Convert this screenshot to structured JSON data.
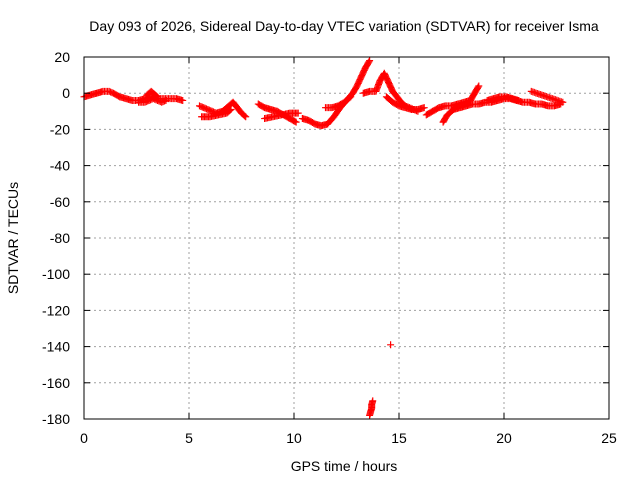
{
  "chart_data": {
    "type": "scatter",
    "title": "Day 093 of 2026, Sidereal Day-to-day VTEC variation (SDTVAR) for receiver Isma",
    "xlabel": "GPS time / hours",
    "ylabel": "SDTVAR / TECUs",
    "xlim": [
      0,
      25
    ],
    "ylim": [
      -180,
      20
    ],
    "xticks": [
      0,
      5,
      10,
      15,
      20,
      25
    ],
    "yticks": [
      20,
      0,
      -20,
      -40,
      -60,
      -80,
      -100,
      -120,
      -140,
      -160,
      -180
    ],
    "grid": true,
    "marker": "+",
    "color": "#ff0000",
    "series": [
      {
        "name": "SDTVAR",
        "segments": [
          [
            [
              0.0,
              -2
            ],
            [
              0.3,
              -1
            ],
            [
              0.6,
              0
            ],
            [
              0.9,
              1
            ],
            [
              1.2,
              1
            ],
            [
              1.4,
              0
            ],
            [
              1.7,
              -2
            ],
            [
              2.0,
              -3
            ],
            [
              2.3,
              -4
            ],
            [
              2.6,
              -4
            ],
            [
              2.9,
              -3
            ],
            [
              3.2,
              -2
            ],
            [
              3.5,
              -3
            ],
            [
              3.8,
              -3
            ],
            [
              4.1,
              -3
            ],
            [
              4.4,
              -3
            ],
            [
              4.7,
              -4
            ]
          ],
          [
            [
              2.6,
              -5
            ],
            [
              2.9,
              -5
            ],
            [
              3.1,
              -4
            ],
            [
              3.3,
              -3
            ],
            [
              3.5,
              -4
            ],
            [
              3.7,
              -5
            ],
            [
              3.9,
              -4
            ]
          ],
          [
            [
              3.0,
              -1
            ],
            [
              3.1,
              0
            ],
            [
              3.2,
              1
            ],
            [
              3.3,
              0
            ],
            [
              3.4,
              -1
            ],
            [
              3.5,
              -2
            ]
          ],
          [
            [
              5.5,
              -7
            ],
            [
              5.9,
              -9
            ],
            [
              6.3,
              -11
            ],
            [
              6.6,
              -10
            ],
            [
              6.9,
              -7
            ],
            [
              7.1,
              -5
            ],
            [
              7.3,
              -8
            ],
            [
              7.5,
              -11
            ],
            [
              7.7,
              -13
            ]
          ],
          [
            [
              5.6,
              -13
            ],
            [
              6.0,
              -13
            ],
            [
              6.4,
              -12
            ],
            [
              6.8,
              -11
            ],
            [
              7.0,
              -9
            ]
          ],
          [
            [
              8.3,
              -6
            ],
            [
              8.6,
              -8
            ],
            [
              8.9,
              -9
            ],
            [
              9.2,
              -10
            ],
            [
              9.5,
              -12
            ],
            [
              9.8,
              -14
            ],
            [
              10.1,
              -16
            ]
          ],
          [
            [
              8.6,
              -14
            ],
            [
              9.0,
              -13
            ],
            [
              9.4,
              -12
            ],
            [
              9.8,
              -11
            ],
            [
              10.2,
              -11
            ]
          ],
          [
            [
              10.4,
              -14
            ],
            [
              10.7,
              -15
            ],
            [
              11.0,
              -17
            ],
            [
              11.3,
              -18
            ],
            [
              11.6,
              -17
            ],
            [
              11.9,
              -13
            ],
            [
              12.2,
              -8
            ],
            [
              12.5,
              -4
            ],
            [
              12.8,
              0
            ],
            [
              13.0,
              4
            ],
            [
              13.2,
              9
            ],
            [
              13.4,
              14
            ],
            [
              13.6,
              18
            ]
          ],
          [
            [
              11.5,
              -8
            ],
            [
              11.8,
              -8
            ],
            [
              12.1,
              -7
            ],
            [
              12.4,
              -5
            ],
            [
              12.7,
              -2
            ]
          ],
          [
            [
              13.3,
              0
            ],
            [
              13.6,
              1
            ],
            [
              13.9,
              1
            ],
            [
              14.1,
              7
            ],
            [
              14.3,
              11
            ],
            [
              14.5,
              6
            ],
            [
              14.7,
              1
            ],
            [
              14.9,
              -2
            ],
            [
              15.1,
              -5
            ],
            [
              15.3,
              -7
            ],
            [
              15.5,
              -8
            ],
            [
              15.7,
              -9
            ],
            [
              15.9,
              -10
            ]
          ],
          [
            [
              14.4,
              -2
            ],
            [
              14.7,
              -5
            ],
            [
              15.0,
              -7
            ],
            [
              15.3,
              -8
            ],
            [
              15.6,
              -9
            ],
            [
              15.9,
              -9
            ],
            [
              16.2,
              -8
            ]
          ],
          [
            [
              16.3,
              -12
            ],
            [
              16.6,
              -10
            ],
            [
              16.9,
              -8
            ],
            [
              17.2,
              -7
            ],
            [
              17.5,
              -7
            ],
            [
              17.8,
              -6
            ],
            [
              18.1,
              -5
            ],
            [
              18.4,
              -4
            ],
            [
              18.6,
              0
            ],
            [
              18.8,
              4
            ]
          ],
          [
            [
              17.1,
              -16
            ],
            [
              17.3,
              -12
            ],
            [
              17.6,
              -9
            ],
            [
              17.9,
              -8
            ],
            [
              18.2,
              -7
            ],
            [
              18.5,
              -6
            ],
            [
              18.8,
              -6
            ],
            [
              19.1,
              -5
            ],
            [
              19.4,
              -5
            ],
            [
              19.7,
              -4
            ],
            [
              20.0,
              -3
            ],
            [
              20.3,
              -3
            ],
            [
              20.6,
              -4
            ],
            [
              20.9,
              -5
            ],
            [
              21.2,
              -5
            ],
            [
              21.5,
              -6
            ],
            [
              21.8,
              -6
            ],
            [
              22.1,
              -7
            ],
            [
              22.4,
              -7
            ],
            [
              22.7,
              -6
            ]
          ],
          [
            [
              19.2,
              -4
            ],
            [
              19.5,
              -3
            ],
            [
              19.8,
              -2
            ],
            [
              20.1,
              -2
            ],
            [
              20.4,
              -3
            ],
            [
              20.7,
              -4
            ]
          ],
          [
            [
              21.3,
              1
            ],
            [
              22.8,
              -5
            ]
          ],
          [
            [
              13.6,
              -178
            ],
            [
              13.65,
              -176
            ],
            [
              13.7,
              -174
            ],
            [
              13.7,
              -172
            ],
            [
              13.75,
              -170
            ]
          ],
          [
            [
              14.6,
              -139
            ]
          ]
        ]
      }
    ]
  }
}
